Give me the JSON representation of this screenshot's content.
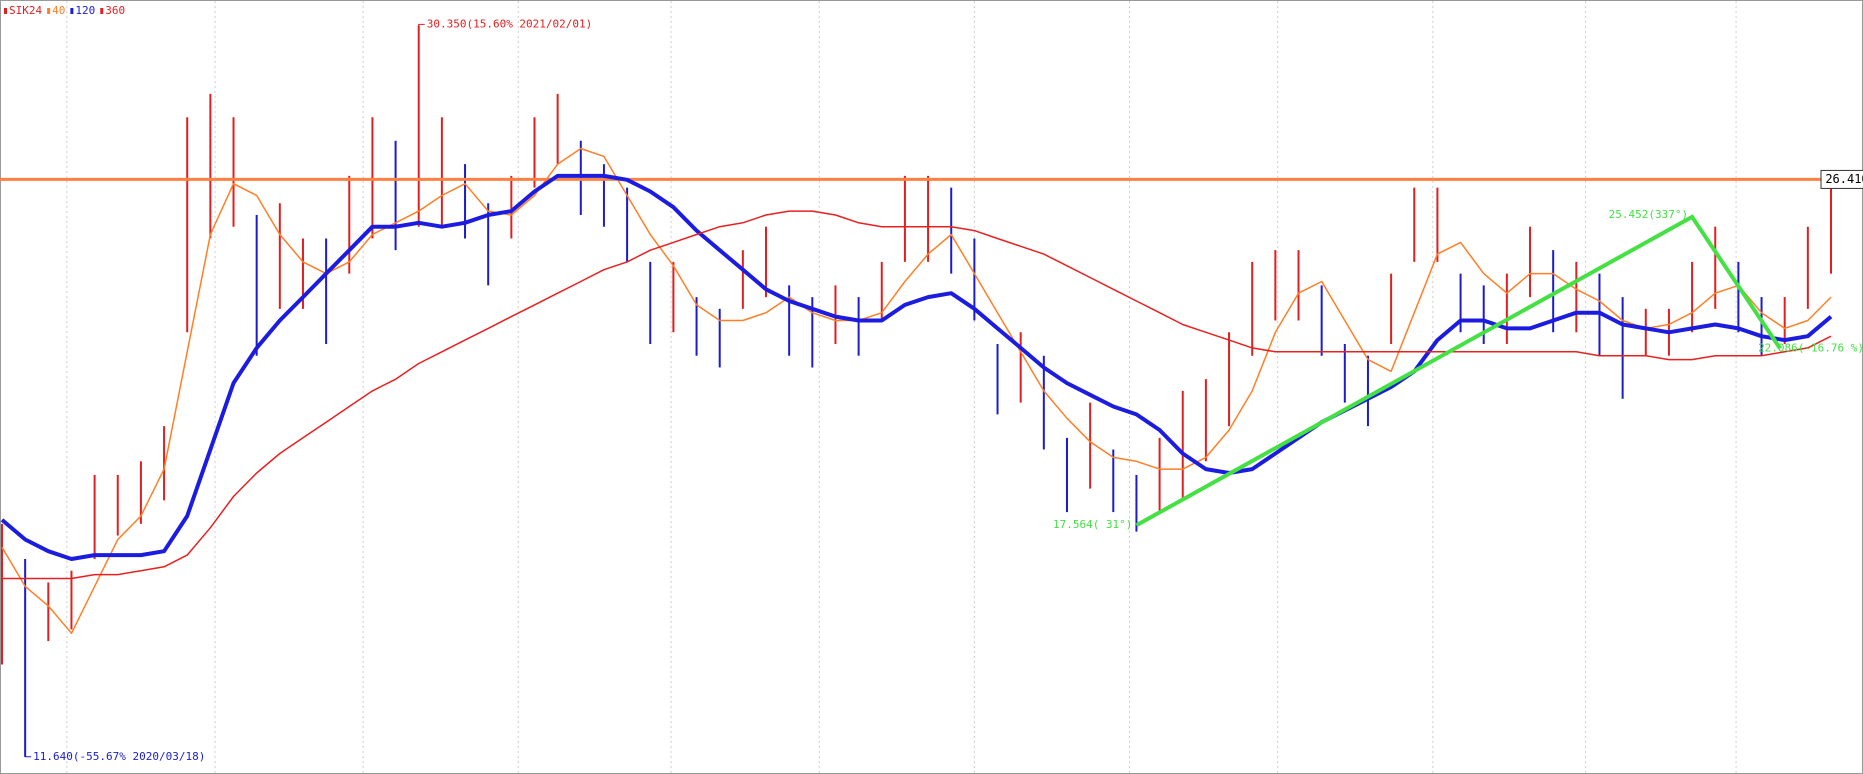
{
  "chart_data": {
    "type": "stock",
    "ylim": [
      11.2,
      31.0
    ],
    "xlim": [
      0,
      79
    ],
    "grid": true,
    "xticks": [
      2.8,
      9.2,
      15.6,
      22.3,
      28.9,
      35.3,
      42.0,
      48.7,
      55.1,
      61.8,
      68.4,
      74.9
    ],
    "series": [
      {
        "name": "SIK24",
        "color": "#e02020",
        "down_color": "#1c1ccc",
        "high": [
          17.6,
          16.7,
          16.1,
          16.4,
          18.85,
          18.85,
          19.2,
          20.1,
          28.0,
          28.6,
          28.0,
          25.5,
          25.8,
          24.9,
          24.9,
          26.5,
          28.0,
          27.4,
          30.35,
          28.0,
          26.8,
          25.8,
          26.5,
          28.0,
          28.6,
          27.4,
          26.8,
          26.2,
          24.3,
          24.3,
          23.4,
          23.1,
          24.6,
          25.2,
          23.7,
          23.4,
          23.7,
          23.4,
          24.3,
          26.5,
          26.5,
          26.2,
          24.9,
          22.2,
          22.5,
          21.9,
          19.8,
          20.7,
          19.5,
          18.85,
          19.8,
          21.0,
          21.3,
          22.5,
          24.3,
          24.6,
          24.6,
          23.7,
          22.2,
          21.9,
          24.0,
          26.2,
          26.2,
          24.0,
          23.7,
          24.0,
          25.2,
          24.6,
          24.3,
          24.0,
          23.4,
          23.1,
          23.1,
          24.3,
          25.2,
          24.3,
          23.4,
          23.4,
          25.2,
          26.2
        ],
        "low": [
          14.0,
          11.64,
          14.6,
          14.9,
          16.7,
          17.3,
          17.6,
          18.2,
          22.5,
          24.9,
          25.2,
          21.9,
          23.1,
          23.1,
          22.2,
          24.0,
          24.9,
          24.6,
          25.2,
          25.2,
          24.9,
          23.7,
          24.9,
          26.2,
          26.8,
          25.5,
          25.2,
          24.3,
          22.2,
          22.5,
          21.9,
          21.6,
          23.1,
          23.4,
          21.9,
          21.6,
          22.2,
          21.9,
          22.8,
          24.3,
          24.3,
          24.0,
          22.8,
          20.4,
          20.7,
          19.5,
          17.9,
          18.5,
          17.9,
          17.4,
          17.9,
          18.2,
          19.2,
          20.1,
          21.9,
          22.8,
          22.8,
          21.9,
          20.7,
          20.1,
          22.2,
          24.3,
          24.3,
          22.5,
          22.2,
          22.2,
          23.4,
          22.5,
          22.5,
          21.9,
          20.8,
          21.9,
          21.9,
          22.5,
          23.1,
          22.5,
          21.9,
          22.2,
          23.1,
          24.0
        ]
      },
      {
        "name": "40",
        "color": "#ff7f27",
        "width": 1.5,
        "values": [
          17.0,
          16.0,
          15.5,
          14.8,
          16.0,
          17.2,
          17.8,
          19.0,
          22.0,
          25.0,
          26.3,
          26.0,
          25.0,
          24.3,
          24.0,
          24.3,
          25.0,
          25.3,
          25.6,
          26.0,
          26.3,
          25.6,
          25.5,
          26.0,
          26.8,
          27.2,
          27.0,
          26.0,
          25.0,
          24.2,
          23.2,
          22.8,
          22.8,
          23.0,
          23.4,
          23.0,
          22.8,
          22.8,
          23.0,
          23.8,
          24.5,
          25.0,
          24.0,
          23.0,
          22.0,
          21.0,
          20.3,
          19.7,
          19.3,
          19.2,
          19.0,
          19.0,
          19.3,
          20.0,
          21.0,
          22.5,
          23.5,
          23.8,
          22.8,
          21.8,
          21.5,
          23.0,
          24.5,
          24.8,
          24.0,
          23.5,
          24.0,
          24.0,
          23.6,
          23.3,
          22.8,
          22.6,
          22.7,
          23.0,
          23.5,
          23.7,
          23.0,
          22.6,
          22.8,
          23.4
        ]
      },
      {
        "name": "120",
        "color": "#1c1ce0",
        "width": 4,
        "values": [
          17.7,
          17.2,
          16.9,
          16.7,
          16.8,
          16.8,
          16.8,
          16.9,
          17.8,
          19.5,
          21.2,
          22.1,
          22.8,
          23.4,
          24.0,
          24.6,
          25.2,
          25.2,
          25.3,
          25.2,
          25.3,
          25.5,
          25.6,
          26.1,
          26.5,
          26.5,
          26.5,
          26.4,
          26.1,
          25.7,
          25.1,
          24.6,
          24.1,
          23.6,
          23.3,
          23.1,
          22.9,
          22.8,
          22.8,
          23.2,
          23.4,
          23.5,
          23.1,
          22.6,
          22.1,
          21.6,
          21.2,
          20.9,
          20.6,
          20.4,
          20.0,
          19.4,
          19.0,
          18.9,
          19.0,
          19.4,
          19.8,
          20.2,
          20.5,
          20.8,
          21.1,
          21.5,
          22.3,
          22.8,
          22.8,
          22.6,
          22.6,
          22.8,
          23.0,
          23.0,
          22.7,
          22.6,
          22.5,
          22.6,
          22.7,
          22.6,
          22.4,
          22.3,
          22.4,
          22.9
        ]
      },
      {
        "name": "360",
        "color": "#e82020",
        "width": 1.5,
        "values": [
          16.2,
          16.2,
          16.2,
          16.2,
          16.3,
          16.3,
          16.4,
          16.5,
          16.8,
          17.5,
          18.3,
          18.9,
          19.4,
          19.8,
          20.2,
          20.6,
          21.0,
          21.3,
          21.7,
          22.0,
          22.3,
          22.6,
          22.9,
          23.2,
          23.5,
          23.8,
          24.1,
          24.3,
          24.6,
          24.8,
          25.0,
          25.2,
          25.3,
          25.5,
          25.6,
          25.6,
          25.5,
          25.3,
          25.2,
          25.2,
          25.2,
          25.2,
          25.1,
          24.9,
          24.7,
          24.5,
          24.2,
          23.9,
          23.6,
          23.3,
          23.0,
          22.7,
          22.5,
          22.3,
          22.1,
          22.0,
          22.0,
          22.0,
          22.0,
          22.0,
          22.0,
          22.0,
          22.0,
          22.0,
          22.0,
          22.0,
          22.0,
          22.0,
          22.0,
          21.9,
          21.9,
          21.9,
          21.8,
          21.8,
          21.9,
          21.9,
          21.9,
          22.0,
          22.1,
          22.4
        ]
      }
    ],
    "hline": {
      "value": 26.41,
      "label": "26.410",
      "color": "#ff8040"
    },
    "trendline": {
      "color": "#44e044",
      "x": [
        49,
        73,
        76.8
      ],
      "values": [
        17.564,
        25.452,
        22.086
      ]
    },
    "annotations": [
      {
        "text": "30.350(15.60% 2021/02/01)",
        "x": 18,
        "y": 30.35,
        "color": "#e02020"
      },
      {
        "text": "11.640(-55.67% 2020/03/18)",
        "x": 1,
        "y": 11.64,
        "color": "#1c1ccc"
      },
      {
        "text": "17.564( 31°)",
        "x": 49,
        "y": 17.564,
        "color": "#44e044"
      },
      {
        "text": "25.452(337°)",
        "x": 73,
        "y": 25.452,
        "color": "#44e044"
      },
      {
        "text": "22.086(-16.76 %)",
        "x": 76.8,
        "y": 22.086,
        "color": "#44e044"
      }
    ]
  }
}
